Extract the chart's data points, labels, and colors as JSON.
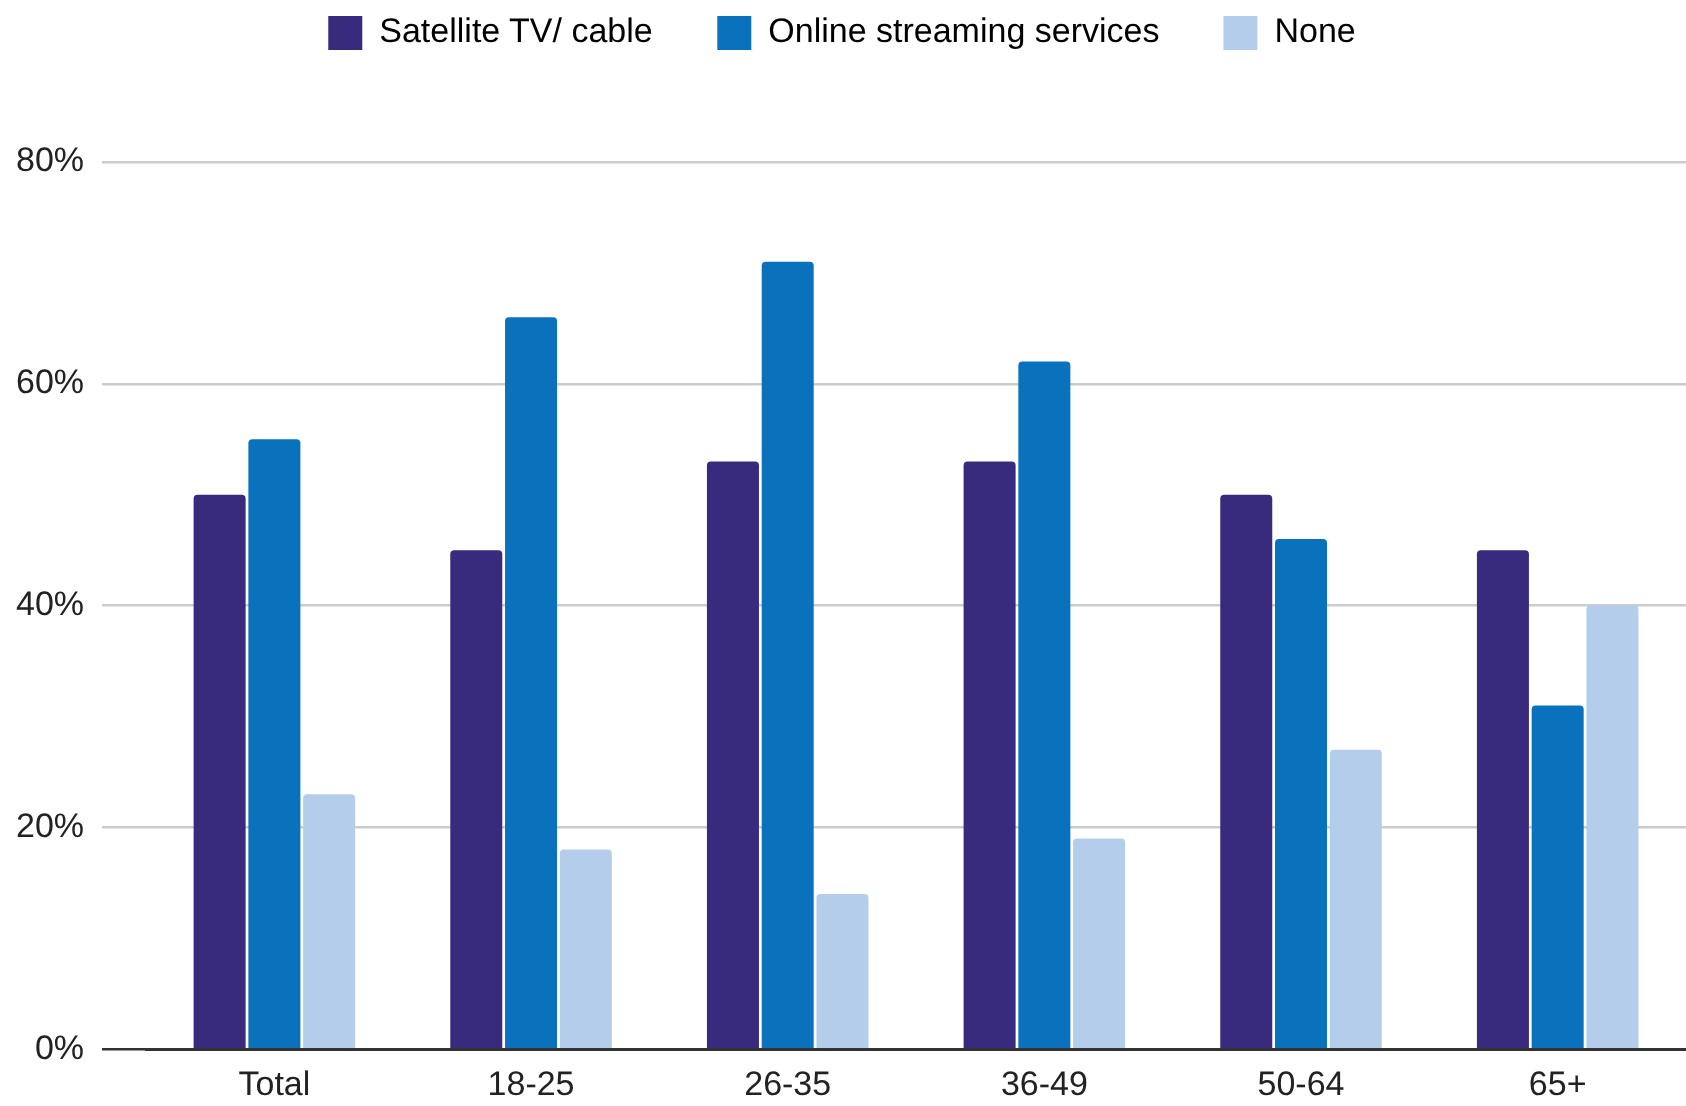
{
  "chart_data": {
    "type": "bar",
    "categories": [
      "Total",
      "18-25",
      "26-35",
      "36-49",
      "50-64",
      "65+"
    ],
    "series": [
      {
        "name": "Satellite TV/ cable",
        "color": "#382a7c",
        "values": [
          50,
          45,
          53,
          53,
          50,
          45
        ]
      },
      {
        "name": "Online streaming services",
        "color": "#0a72bc",
        "values": [
          55,
          66,
          71,
          62,
          46,
          31
        ]
      },
      {
        "name": "None",
        "color": "#b4cdeb",
        "values": [
          23,
          18,
          14,
          19,
          27,
          40
        ]
      }
    ],
    "ylim": [
      0,
      80
    ],
    "yticks": [
      {
        "value": 0,
        "label": "0%"
      },
      {
        "value": 20,
        "label": "20%"
      },
      {
        "value": 40,
        "label": "40%"
      },
      {
        "value": 60,
        "label": "60%"
      },
      {
        "value": 80,
        "label": "80%"
      }
    ],
    "grid": "y",
    "legend": "top"
  }
}
